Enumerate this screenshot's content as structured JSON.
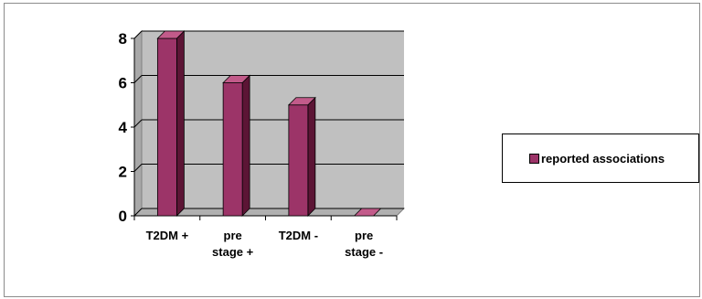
{
  "chart_data": {
    "type": "bar",
    "categories": [
      [
        "T2DM +"
      ],
      [
        "pre",
        "stage +"
      ],
      [
        "T2DM -"
      ],
      [
        "pre",
        "stage -"
      ]
    ],
    "series": [
      {
        "name": "reported associations",
        "values": [
          8,
          6,
          5,
          0
        ]
      }
    ],
    "ylim": [
      0,
      8
    ],
    "yticks": [
      "0",
      "2",
      "4",
      "6",
      "8"
    ],
    "grid": true,
    "legend_position": "right",
    "colors": {
      "bar": "#9c3468",
      "bar_side": "#5c1535",
      "bar_top": "#c25b8a",
      "plot_back": "#c0c0c0",
      "plot_wall": "#a8a8a8",
      "grid": "#000000"
    }
  }
}
